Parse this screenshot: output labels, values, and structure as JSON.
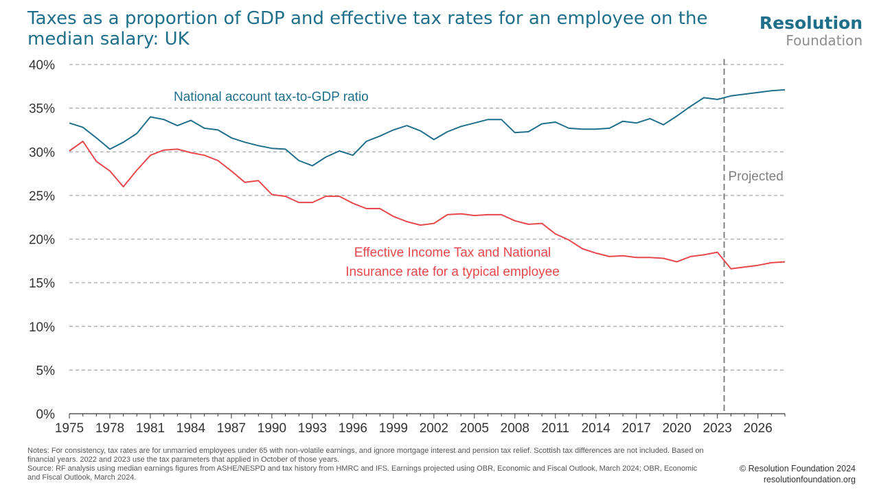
{
  "title": "Taxes as a proportion of GDP and effective tax rates for an employee on the median salary: UK",
  "logo": {
    "line1": "Resolution",
    "line2": "Foundation"
  },
  "notes": {
    "line1": "Notes: For consistency, tax rates are for unmarried employees under 65 with non-volatile earnings, and ignore mortgage interest and pension tax relief. Scottish tax differences are not included. Based on financial years. 2022 and 2023 use the tax parameters that applied in October of those years.",
    "line2": "Source: RF analysis using median earnings figures from ASHE/NESPD and tax history from HMRC and IFS. Earnings projected using OBR, Economic and Fiscal Outlook, March 2024; OBR, Economic and Fiscal Outlook, March 2024."
  },
  "credit": {
    "copyright": "© Resolution Foundation 2024",
    "url": "resolutionfoundation.org"
  },
  "chart_data": {
    "type": "line",
    "title": "Taxes as a proportion of GDP and effective tax rates for an employee on the median salary: UK",
    "xlim": [
      1975,
      2028
    ],
    "ylim": [
      0,
      40
    ],
    "x_ticks": [
      "1975",
      "1978",
      "1981",
      "1984",
      "1987",
      "1990",
      "1993",
      "1996",
      "1999",
      "2002",
      "2005",
      "2008",
      "2011",
      "2014",
      "2017",
      "2020",
      "2023",
      "2026"
    ],
    "y_ticks": [
      "0%",
      "5%",
      "10%",
      "15%",
      "20%",
      "25%",
      "30%",
      "35%",
      "40%"
    ],
    "grid": "horizontal-dashed",
    "projection_marker": {
      "x": 2023.5,
      "label": "Projected"
    },
    "series": [
      {
        "name": "National account tax-to-GDP ratio",
        "color": "#1f6f8b",
        "x": [
          1975,
          1976,
          1977,
          1978,
          1979,
          1980,
          1981,
          1982,
          1983,
          1984,
          1985,
          1986,
          1987,
          1988,
          1989,
          1990,
          1991,
          1992,
          1993,
          1994,
          1995,
          1996,
          1997,
          1998,
          1999,
          2000,
          2001,
          2002,
          2003,
          2004,
          2005,
          2006,
          2007,
          2008,
          2009,
          2010,
          2011,
          2012,
          2013,
          2014,
          2015,
          2016,
          2017,
          2018,
          2019,
          2020,
          2021,
          2022,
          2023,
          2024,
          2025,
          2026,
          2027,
          2028
        ],
        "values": [
          33.3,
          32.8,
          31.6,
          30.3,
          31.1,
          32.1,
          34.0,
          33.7,
          33.0,
          33.6,
          32.7,
          32.5,
          31.6,
          31.1,
          30.7,
          30.4,
          30.3,
          29.0,
          28.4,
          29.4,
          30.1,
          29.6,
          31.2,
          31.8,
          32.5,
          33.0,
          32.4,
          31.4,
          32.3,
          32.9,
          33.3,
          33.7,
          33.7,
          32.2,
          32.3,
          33.2,
          33.4,
          32.7,
          32.6,
          32.6,
          32.7,
          33.5,
          33.3,
          33.8,
          33.1,
          34.1,
          35.2,
          36.2,
          36.0,
          36.4,
          36.6,
          36.8,
          37.0,
          37.1
        ]
      },
      {
        "name": "Effective Income Tax and National Insurance rate for a typical employee",
        "color": "#e8474c",
        "x": [
          1975,
          1976,
          1977,
          1978,
          1979,
          1980,
          1981,
          1982,
          1983,
          1984,
          1985,
          1986,
          1987,
          1988,
          1989,
          1990,
          1991,
          1992,
          1993,
          1994,
          1995,
          1996,
          1997,
          1998,
          1999,
          2000,
          2001,
          2002,
          2003,
          2004,
          2005,
          2006,
          2007,
          2008,
          2009,
          2010,
          2011,
          2012,
          2013,
          2014,
          2015,
          2016,
          2017,
          2018,
          2019,
          2020,
          2021,
          2022,
          2023,
          2024,
          2025,
          2026,
          2027,
          2028
        ],
        "values": [
          30.1,
          31.2,
          28.9,
          27.8,
          26.0,
          27.9,
          29.6,
          30.2,
          30.3,
          29.9,
          29.6,
          29.0,
          27.8,
          26.5,
          26.7,
          25.1,
          24.9,
          24.2,
          24.2,
          24.9,
          24.9,
          24.1,
          23.5,
          23.5,
          22.6,
          22.0,
          21.6,
          21.8,
          22.8,
          22.9,
          22.7,
          22.8,
          22.8,
          22.1,
          21.7,
          21.8,
          20.6,
          19.9,
          18.9,
          18.4,
          18.0,
          18.1,
          17.9,
          17.9,
          17.8,
          17.4,
          18.0,
          18.2,
          18.5,
          16.6,
          16.8,
          17.0,
          17.3,
          17.4
        ]
      }
    ],
    "annotations": [
      {
        "text": "National account tax-to-GDP ratio",
        "series": 0
      },
      {
        "text": "Effective Income Tax and National",
        "series": 1
      },
      {
        "text": "Insurance rate for a typical employee",
        "series": 1
      }
    ]
  }
}
